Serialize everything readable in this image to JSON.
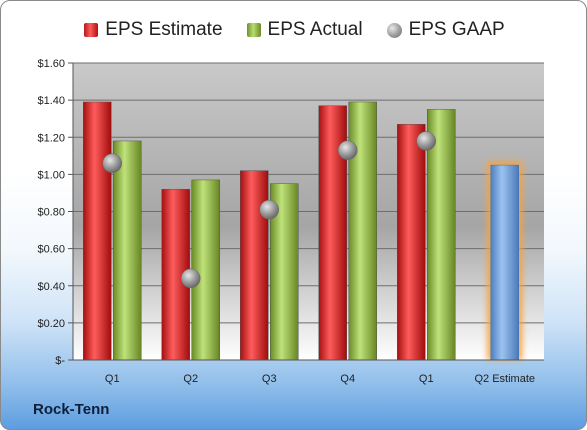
{
  "company": "Rock-Tenn",
  "chart_data": {
    "type": "bar",
    "categories": [
      "Q1",
      "Q2",
      "Q3",
      "Q4",
      "Q1",
      "Q2 Estimate"
    ],
    "series": [
      {
        "name": "EPS Estimate",
        "type": "bar",
        "values": [
          1.39,
          0.92,
          1.02,
          1.37,
          1.27,
          null
        ],
        "color": "#d42020"
      },
      {
        "name": "EPS Actual",
        "type": "bar",
        "values": [
          1.18,
          0.97,
          0.95,
          1.39,
          1.35,
          null
        ],
        "color": "#8cb43c"
      },
      {
        "name": "EPS GAAP",
        "type": "scatter",
        "values": [
          1.06,
          0.44,
          0.81,
          1.13,
          1.18,
          null
        ],
        "color": "#9a9a9a"
      },
      {
        "name": "",
        "type": "bar",
        "values": [
          null,
          null,
          null,
          null,
          null,
          1.05
        ],
        "color": "#6fa2dc"
      }
    ],
    "y_tick_labels": [
      "$-",
      "$0.20",
      "$0.40",
      "$0.60",
      "$0.80",
      "$1.00",
      "$1.20",
      "$1.40",
      "$1.60"
    ],
    "ylim": [
      0,
      1.6
    ],
    "grid": true,
    "legend_position": "top"
  }
}
